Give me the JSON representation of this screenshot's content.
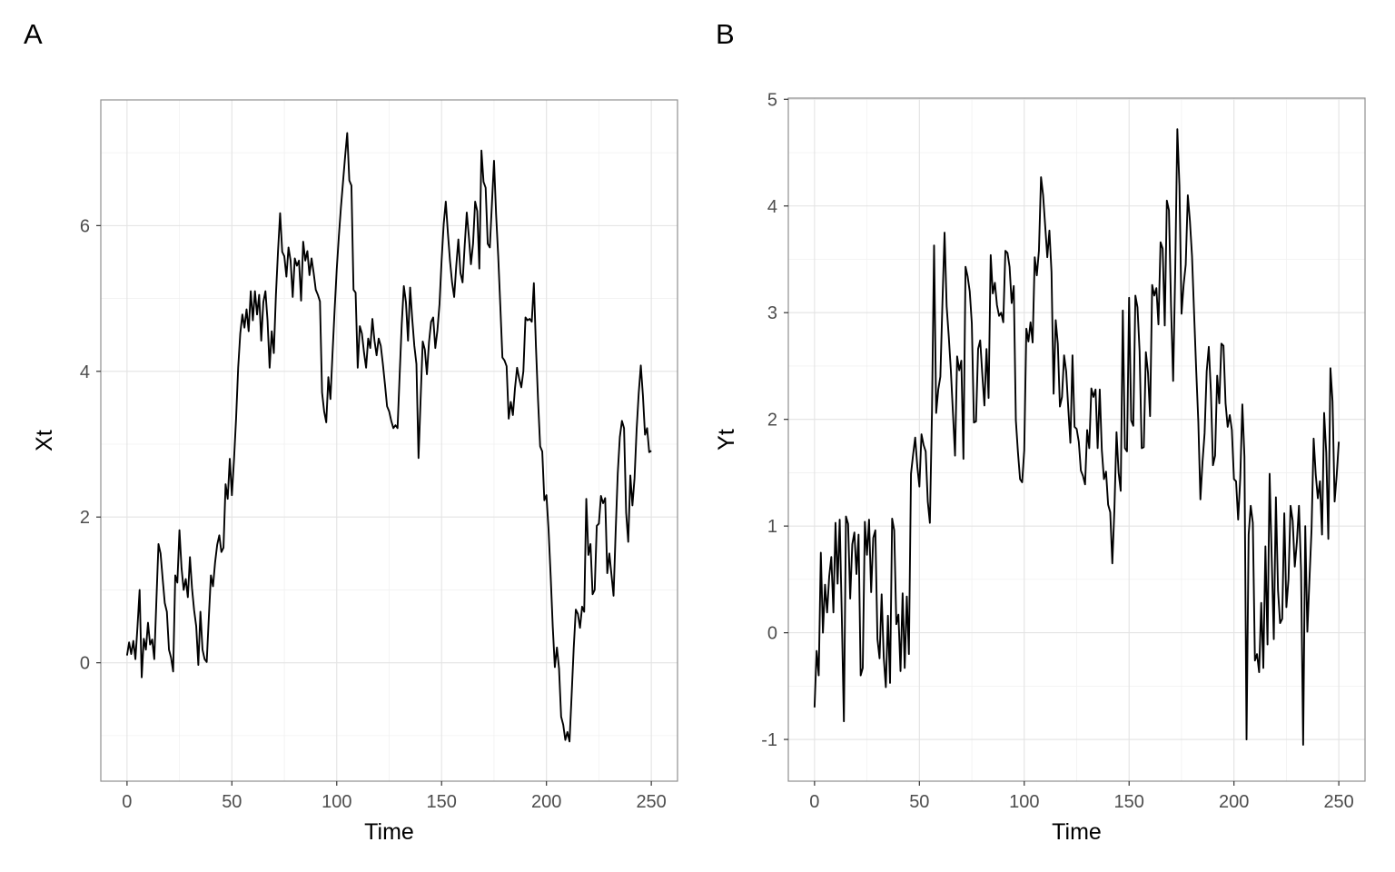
{
  "figure": {
    "background": "#ffffff",
    "panel_tags": [
      "A",
      "B"
    ]
  },
  "style": {
    "line_color": "#000000",
    "grid_major_color": "#e3e3e3",
    "grid_minor_color": "#f1f1f1",
    "panel_border_color": "#8f8f8f",
    "tick_mark_color": "#333333",
    "tick_label_color": "#4d4d4d",
    "axis_title_color": "#000000",
    "tag_color": "#000000"
  },
  "chart_data": [
    {
      "type": "line",
      "panel_tag": "A",
      "title": "",
      "xlabel": "Time",
      "ylabel": "Xt",
      "legend": "none",
      "grid": "on",
      "line_color": "#000000",
      "xlim": [
        0,
        250
      ],
      "ylim": [
        -1.2,
        7.3
      ],
      "x_ticks": [
        0,
        50,
        100,
        150,
        200,
        250
      ],
      "x_minor_gridlines": [
        25,
        75,
        125,
        175,
        225
      ],
      "y_ticks": [
        0,
        2,
        4,
        6
      ],
      "y_minor_gridlines": [
        -1,
        1,
        3,
        5,
        7
      ],
      "x_start": 0,
      "x_step": 1,
      "y": [
        0.1,
        0.28,
        0.12,
        0.3,
        0.05,
        0.5,
        1.0,
        -0.2,
        0.33,
        0.18,
        0.55,
        0.25,
        0.32,
        0.05,
        0.85,
        1.63,
        1.5,
        1.15,
        0.82,
        0.7,
        0.18,
        0.07,
        -0.12,
        1.2,
        1.1,
        1.82,
        1.3,
        1.0,
        1.15,
        0.9,
        1.45,
        1.02,
        0.72,
        0.5,
        -0.03,
        0.7,
        0.18,
        0.05,
        0.01,
        0.62,
        1.2,
        1.05,
        1.38,
        1.62,
        1.75,
        1.52,
        1.58,
        2.45,
        2.25,
        2.8,
        2.3,
        2.78,
        3.35,
        4.05,
        4.52,
        4.78,
        4.6,
        4.85,
        4.55,
        5.1,
        4.7,
        5.1,
        4.78,
        5.05,
        4.42,
        4.95,
        5.1,
        4.7,
        4.05,
        4.55,
        4.25,
        5.05,
        5.65,
        6.17,
        5.64,
        5.58,
        5.3,
        5.7,
        5.52,
        5.02,
        5.55,
        5.45,
        5.52,
        4.97,
        5.78,
        5.52,
        5.65,
        5.32,
        5.55,
        5.35,
        5.12,
        5.05,
        4.96,
        3.71,
        3.45,
        3.3,
        3.92,
        3.62,
        4.25,
        4.85,
        5.4,
        5.85,
        6.25,
        6.6,
        6.95,
        7.27,
        6.62,
        6.55,
        5.12,
        5.08,
        4.05,
        4.62,
        4.52,
        4.26,
        4.05,
        4.45,
        4.32,
        4.72,
        4.42,
        4.22,
        4.45,
        4.35,
        4.1,
        3.82,
        3.52,
        3.45,
        3.32,
        3.22,
        3.26,
        3.22,
        3.95,
        4.65,
        5.17,
        4.95,
        4.42,
        5.15,
        4.72,
        4.35,
        4.1,
        2.81,
        3.62,
        4.41,
        4.3,
        3.96,
        4.4,
        4.68,
        4.74,
        4.32,
        4.56,
        4.92,
        5.52,
        6.02,
        6.33,
        5.9,
        5.52,
        5.22,
        5.02,
        5.45,
        5.81,
        5.35,
        5.22,
        5.72,
        6.18,
        5.85,
        5.47,
        5.75,
        6.33,
        6.2,
        5.41,
        7.03,
        6.6,
        6.52,
        5.75,
        5.7,
        6.3,
        6.89,
        6.15,
        5.58,
        4.9,
        4.19,
        4.15,
        4.07,
        3.35,
        3.58,
        3.4,
        3.77,
        4.05,
        3.9,
        3.78,
        4.0,
        4.74,
        4.7,
        4.72,
        4.68,
        5.21,
        4.33,
        3.6,
        2.97,
        2.9,
        2.23,
        2.3,
        1.83,
        1.2,
        0.5,
        -0.06,
        0.21,
        -0.08,
        -0.74,
        -0.85,
        -1.06,
        -0.95,
        -1.08,
        -0.45,
        0.2,
        0.73,
        0.67,
        0.48,
        0.77,
        0.7,
        2.25,
        1.48,
        1.63,
        0.94,
        1.0,
        1.88,
        1.91,
        2.29,
        2.19,
        2.26,
        1.23,
        1.5,
        1.21,
        0.92,
        1.8,
        2.6,
        3.1,
        3.32,
        3.22,
        2.06,
        1.66,
        2.57,
        2.16,
        2.53,
        3.2,
        3.7,
        4.08,
        3.67,
        3.13,
        3.22,
        2.89,
        2.91
      ]
    },
    {
      "type": "line",
      "panel_tag": "B",
      "title": "",
      "xlabel": "Time",
      "ylabel": "Yt",
      "legend": "none",
      "grid": "on",
      "line_color": "#000000",
      "xlim": [
        0,
        250
      ],
      "ylim": [
        -1.1,
        4.72
      ],
      "x_ticks": [
        0,
        50,
        100,
        150,
        200,
        250
      ],
      "x_minor_gridlines": [
        25,
        75,
        125,
        175,
        225
      ],
      "y_ticks": [
        -1,
        0,
        1,
        2,
        3,
        4,
        5
      ],
      "y_minor_gridlines": [
        -0.5,
        0.5,
        1.5,
        2.5,
        3.5,
        4.5
      ],
      "x_start": 0,
      "x_step": 1,
      "y": [
        -0.7,
        -0.17,
        -0.4,
        0.75,
        0.0,
        0.45,
        0.19,
        0.53,
        0.71,
        0.19,
        1.03,
        0.46,
        1.06,
        0.16,
        -0.83,
        1.09,
        1.02,
        0.32,
        0.83,
        0.94,
        0.55,
        0.92,
        -0.4,
        -0.33,
        1.04,
        0.73,
        1.06,
        0.38,
        0.89,
        0.96,
        -0.06,
        -0.24,
        0.36,
        -0.23,
        -0.51,
        0.16,
        -0.47,
        1.07,
        0.96,
        0.08,
        0.17,
        -0.36,
        0.37,
        -0.33,
        0.34,
        -0.2,
        1.49,
        1.67,
        1.83,
        1.56,
        1.37,
        1.86,
        1.76,
        1.7,
        1.23,
        1.03,
        2.07,
        3.63,
        2.06,
        2.28,
        2.4,
        3.1,
        3.75,
        3.06,
        2.78,
        2.46,
        2.06,
        1.66,
        2.59,
        2.46,
        2.55,
        1.63,
        3.43,
        3.34,
        3.2,
        2.9,
        1.97,
        1.98,
        2.66,
        2.74,
        2.42,
        2.13,
        2.66,
        2.2,
        3.54,
        3.18,
        3.28,
        3.07,
        2.97,
        3.0,
        2.91,
        3.58,
        3.56,
        3.43,
        3.09,
        3.25,
        1.99,
        1.69,
        1.44,
        1.41,
        1.71,
        2.85,
        2.73,
        2.91,
        2.72,
        3.52,
        3.35,
        3.58,
        4.27,
        4.1,
        3.81,
        3.52,
        3.77,
        3.38,
        2.24,
        2.93,
        2.71,
        2.12,
        2.21,
        2.6,
        2.45,
        2.1,
        1.78,
        2.6,
        1.93,
        1.91,
        1.79,
        1.52,
        1.47,
        1.39,
        1.9,
        1.73,
        2.29,
        2.21,
        2.28,
        1.73,
        2.28,
        1.71,
        1.44,
        1.51,
        1.2,
        1.13,
        0.65,
        1.16,
        1.88,
        1.5,
        1.33,
        3.02,
        1.73,
        1.7,
        3.14,
        1.99,
        1.94,
        3.16,
        3.05,
        2.64,
        1.73,
        1.74,
        2.63,
        2.44,
        2.03,
        3.26,
        3.16,
        3.23,
        2.89,
        3.66,
        3.6,
        2.88,
        4.05,
        3.96,
        3.06,
        2.36,
        3.4,
        4.72,
        4.19,
        2.99,
        3.26,
        3.45,
        4.1,
        3.86,
        3.53,
        2.99,
        2.46,
        1.98,
        1.25,
        1.6,
        1.87,
        2.45,
        2.68,
        2.26,
        1.57,
        1.66,
        2.41,
        2.15,
        2.71,
        2.69,
        2.15,
        1.93,
        2.04,
        1.9,
        1.44,
        1.42,
        1.06,
        1.45,
        2.14,
        1.65,
        -1.0,
        0.92,
        1.19,
        1.03,
        -0.26,
        -0.2,
        -0.37,
        0.28,
        -0.33,
        0.81,
        -0.11,
        1.49,
        0.7,
        -0.06,
        1.27,
        0.4,
        0.09,
        0.13,
        1.12,
        0.24,
        0.5,
        1.19,
        1.05,
        0.62,
        0.85,
        1.19,
        0.58,
        -1.05,
        1.0,
        0.01,
        0.5,
        0.97,
        1.82,
        1.48,
        1.26,
        1.42,
        0.92,
        2.06,
        1.69,
        0.88,
        2.48,
        2.17,
        1.23,
        1.48,
        1.79
      ]
    }
  ]
}
